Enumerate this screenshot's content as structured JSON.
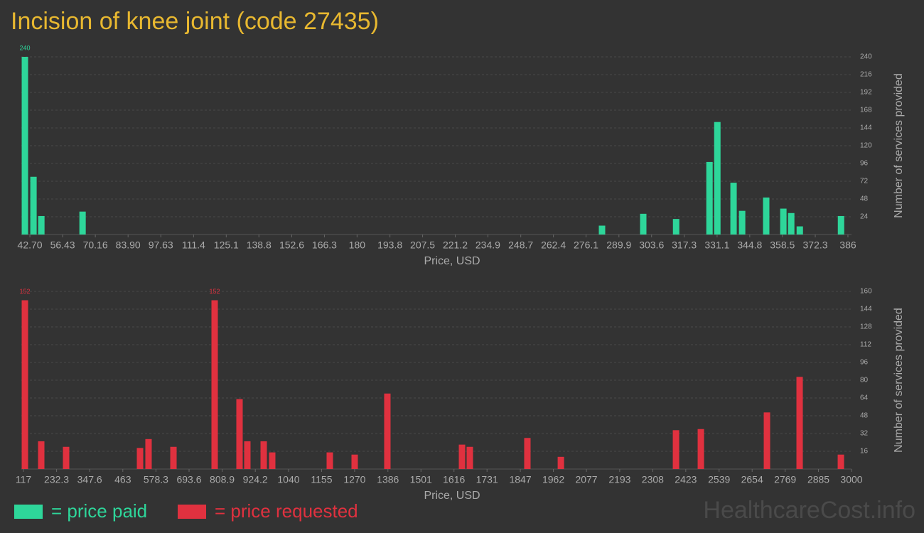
{
  "title": "Incision of knee joint (code 27435)",
  "watermark": "HealthcareCost.info",
  "chart_data": [
    {
      "type": "bar",
      "x": [
        40.6,
        44.2,
        47.5,
        64.8,
        282.8,
        300.1,
        313.9,
        327.9,
        331.2,
        338.0,
        341.6,
        351.7,
        358.9,
        362.2,
        365.8,
        383.1
      ],
      "series": [
        {
          "name": "= price paid",
          "color": "#2ed69a",
          "values": [
            240,
            78,
            25,
            31,
            12,
            28,
            21,
            98,
            152,
            70,
            32,
            50,
            35,
            29,
            11,
            25
          ]
        }
      ],
      "xlim": [
        39.1,
        387.5
      ],
      "xticks": [
        {
          "value": 42.7,
          "label": "42.70"
        },
        56.43,
        70.16,
        {
          "value": 83.9,
          "label": "83.90"
        },
        97.63,
        111.4,
        125.1,
        138.8,
        152.6,
        166.3,
        180,
        193.8,
        207.5,
        221.2,
        234.9,
        248.7,
        262.4,
        276.1,
        289.9,
        303.6,
        317.3,
        331.1,
        344.8,
        358.5,
        372.3,
        386
      ],
      "ylim": [
        0,
        240
      ],
      "yticks": [
        24,
        48,
        72,
        96,
        120,
        144,
        168,
        192,
        216,
        240
      ],
      "xlabel": "Price, USD",
      "ylabel": "Number of services provided",
      "grid": true
    },
    {
      "type": "bar",
      "x": [
        122,
        178.9,
        265.5,
        522.9,
        552.5,
        639.2,
        782.7,
        869.3,
        896.5,
        953.5,
        983.1,
        1183.6,
        1270.2,
        1384.0,
        1643.9,
        1671.1,
        1871.5,
        1988.1,
        2388.9,
        2475.5,
        2705.6,
        2819.4,
        2963.0
      ],
      "series": [
        {
          "name": "= price requested",
          "color": "#e0313f",
          "values": [
            152,
            25,
            20,
            19,
            27,
            20,
            152,
            63,
            25,
            25,
            15,
            15,
            13,
            68,
            22,
            20,
            28,
            11,
            35,
            36,
            51,
            83,
            13
          ]
        }
      ],
      "xlim": [
        109.6,
        3000
      ],
      "xticks": [
        117,
        232.3,
        347.6,
        463,
        578.3,
        693.6,
        808.9,
        924.2,
        1040,
        1155,
        1270,
        1386,
        1501,
        1616,
        1731,
        1847,
        1962,
        2077,
        2193,
        2308,
        2423,
        2539,
        2654,
        2769,
        2885,
        3000
      ],
      "ylim": [
        0,
        160
      ],
      "yticks": [
        16,
        32,
        48,
        64,
        80,
        96,
        112,
        128,
        144,
        160
      ],
      "xlabel": "Price, USD",
      "ylabel": "Number of services provided",
      "grid": true
    }
  ]
}
